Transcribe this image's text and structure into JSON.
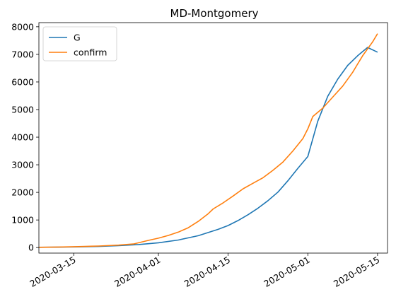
{
  "chart_data": {
    "type": "line",
    "title": "MD-Montgomery",
    "xlabel": "",
    "ylabel": "",
    "xlim": [
      "2020-03-08",
      "2020-05-17"
    ],
    "ylim": [
      -200,
      8150
    ],
    "x_ticks": [
      "2020-03-15",
      "2020-04-01",
      "2020-04-15",
      "2020-05-01",
      "2020-05-15"
    ],
    "y_ticks": [
      0,
      1000,
      2000,
      3000,
      4000,
      5000,
      6000,
      7000,
      8000
    ],
    "grid": false,
    "legend_position": "top-left",
    "series": [
      {
        "name": "G",
        "color": "#1f77b4",
        "points": [
          [
            "2020-03-08",
            10
          ],
          [
            "2020-03-12",
            16
          ],
          [
            "2020-03-16",
            26
          ],
          [
            "2020-03-20",
            42
          ],
          [
            "2020-03-24",
            68
          ],
          [
            "2020-03-28",
            110
          ],
          [
            "2020-04-01",
            175
          ],
          [
            "2020-04-05",
            275
          ],
          [
            "2020-04-09",
            430
          ],
          [
            "2020-04-13",
            660
          ],
          [
            "2020-04-15",
            800
          ],
          [
            "2020-04-17",
            980
          ],
          [
            "2020-04-19",
            1190
          ],
          [
            "2020-04-21",
            1430
          ],
          [
            "2020-04-23",
            1700
          ],
          [
            "2020-04-25",
            2010
          ],
          [
            "2020-04-27",
            2420
          ],
          [
            "2020-04-29",
            2870
          ],
          [
            "2020-05-01",
            3300
          ],
          [
            "2020-05-03",
            4580
          ],
          [
            "2020-05-05",
            5480
          ],
          [
            "2020-05-07",
            6100
          ],
          [
            "2020-05-09",
            6600
          ],
          [
            "2020-05-11",
            6950
          ],
          [
            "2020-05-13",
            7250
          ],
          [
            "2020-05-15",
            7080
          ]
        ]
      },
      {
        "name": "confirm",
        "color": "#ff7f0e",
        "points": [
          [
            "2020-03-08",
            10
          ],
          [
            "2020-03-12",
            20
          ],
          [
            "2020-03-16",
            35
          ],
          [
            "2020-03-20",
            55
          ],
          [
            "2020-03-24",
            90
          ],
          [
            "2020-03-27",
            130
          ],
          [
            "2020-03-30",
            260
          ],
          [
            "2020-04-01",
            340
          ],
          [
            "2020-04-03",
            440
          ],
          [
            "2020-04-05",
            560
          ],
          [
            "2020-04-07",
            720
          ],
          [
            "2020-04-09",
            950
          ],
          [
            "2020-04-11",
            1230
          ],
          [
            "2020-04-12",
            1400
          ],
          [
            "2020-04-14",
            1620
          ],
          [
            "2020-04-16",
            1870
          ],
          [
            "2020-04-18",
            2130
          ],
          [
            "2020-04-20",
            2330
          ],
          [
            "2020-04-22",
            2530
          ],
          [
            "2020-04-24",
            2800
          ],
          [
            "2020-04-26",
            3100
          ],
          [
            "2020-04-28",
            3500
          ],
          [
            "2020-04-30",
            3950
          ],
          [
            "2020-05-01",
            4300
          ],
          [
            "2020-05-02",
            4750
          ],
          [
            "2020-05-04",
            5050
          ],
          [
            "2020-05-06",
            5450
          ],
          [
            "2020-05-08",
            5850
          ],
          [
            "2020-05-10",
            6350
          ],
          [
            "2020-05-11",
            6650
          ],
          [
            "2020-05-12",
            6950
          ],
          [
            "2020-05-13",
            7200
          ],
          [
            "2020-05-14",
            7450
          ],
          [
            "2020-05-15",
            7750
          ]
        ]
      }
    ]
  }
}
